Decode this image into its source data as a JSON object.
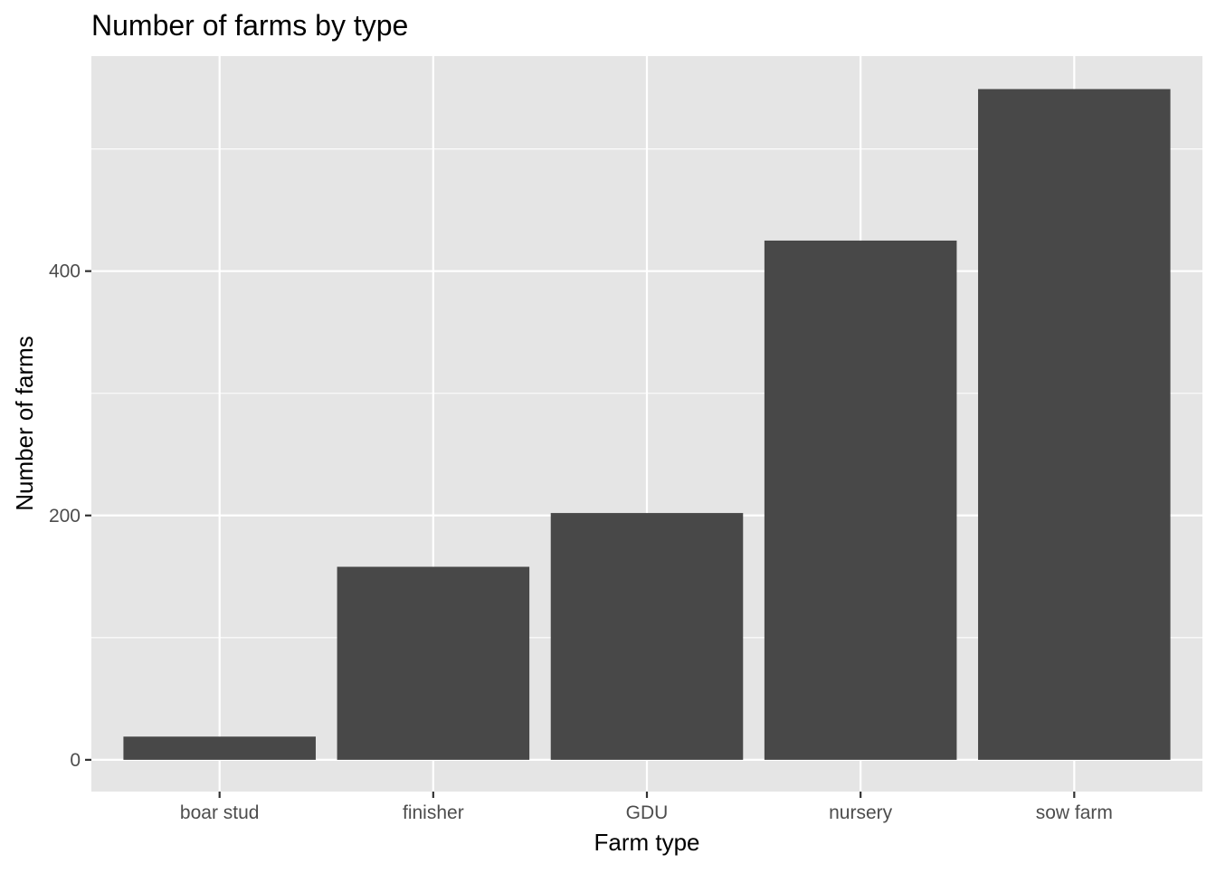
{
  "chart_data": {
    "type": "bar",
    "title": "Number of farms by type",
    "xlabel": "Farm type",
    "ylabel": "Number of farms",
    "categories": [
      "boar stud",
      "finisher",
      "GDU",
      "nursery",
      "sow farm"
    ],
    "values": [
      19,
      158,
      202,
      425,
      549
    ],
    "ylim": [
      -26,
      576
    ],
    "y_ticks": [
      0,
      200,
      400
    ],
    "y_minor_ticks": [
      100,
      300,
      500
    ],
    "grid": true,
    "colors": {
      "panel_background": "#e5e5e5",
      "grid": "#ffffff",
      "bar": "#484848",
      "tick_mark": "#333333",
      "tick_label": "#4d4d4d"
    }
  }
}
